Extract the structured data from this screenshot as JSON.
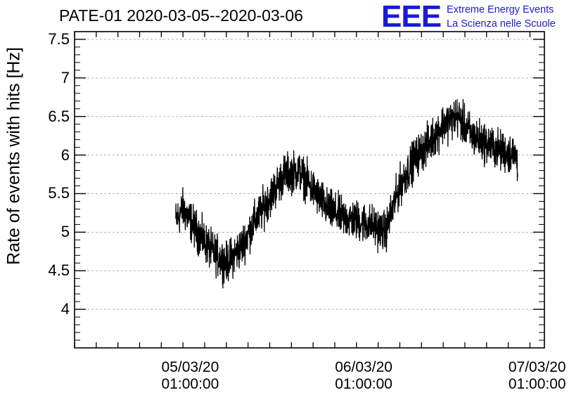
{
  "chart_data": {
    "type": "line",
    "title": "PATE-01 2020-03-05--2020-03-06",
    "ylabel": "Rate of events with hits [Hz]",
    "xlabel": "",
    "ylim": [
      3.5,
      7.6
    ],
    "xlim": [
      "2020-03-04 09:00",
      "2020-03-07 02:00"
    ],
    "yticks": [
      4,
      4.5,
      5,
      5.5,
      6,
      6.5,
      7,
      7.5
    ],
    "ytick_labels": [
      "4",
      "4.5",
      "5",
      "5.5",
      "6",
      "6.5",
      "7",
      "7.5"
    ],
    "xticks": [
      {
        "x": "2020-03-05 01:00",
        "label": "05/03/20",
        "label2": "01:00:00"
      },
      {
        "x": "2020-03-06 01:00",
        "label": "06/03/20",
        "label2": "01:00:00"
      },
      {
        "x": "2020-03-07 01:00",
        "label": "07/03/20",
        "label2": "01:00:00"
      }
    ],
    "grid": true,
    "x_hours_from_2020-03-05_00:00": [
      -1.0,
      0,
      2,
      4,
      6,
      8,
      10,
      12,
      14,
      16,
      18,
      20,
      22,
      24,
      26,
      28,
      30,
      32,
      34,
      36,
      38,
      40,
      42,
      44,
      46,
      46.3
    ],
    "series": [
      {
        "values": [
          5.15,
          5.3,
          5.0,
          4.75,
          4.6,
          4.8,
          5.15,
          5.45,
          5.75,
          5.8,
          5.55,
          5.3,
          5.2,
          5.15,
          5.1,
          5.0,
          5.6,
          5.95,
          6.15,
          6.4,
          6.5,
          6.25,
          6.15,
          6.05,
          6.0,
          5.9
        ],
        "noise_amplitude": 0.35
      }
    ]
  },
  "logo": {
    "mark": "EEE",
    "line1": "Extreme Energy Events",
    "line2": "La Scienza nelle Scuole",
    "color": "#1a1adc"
  }
}
